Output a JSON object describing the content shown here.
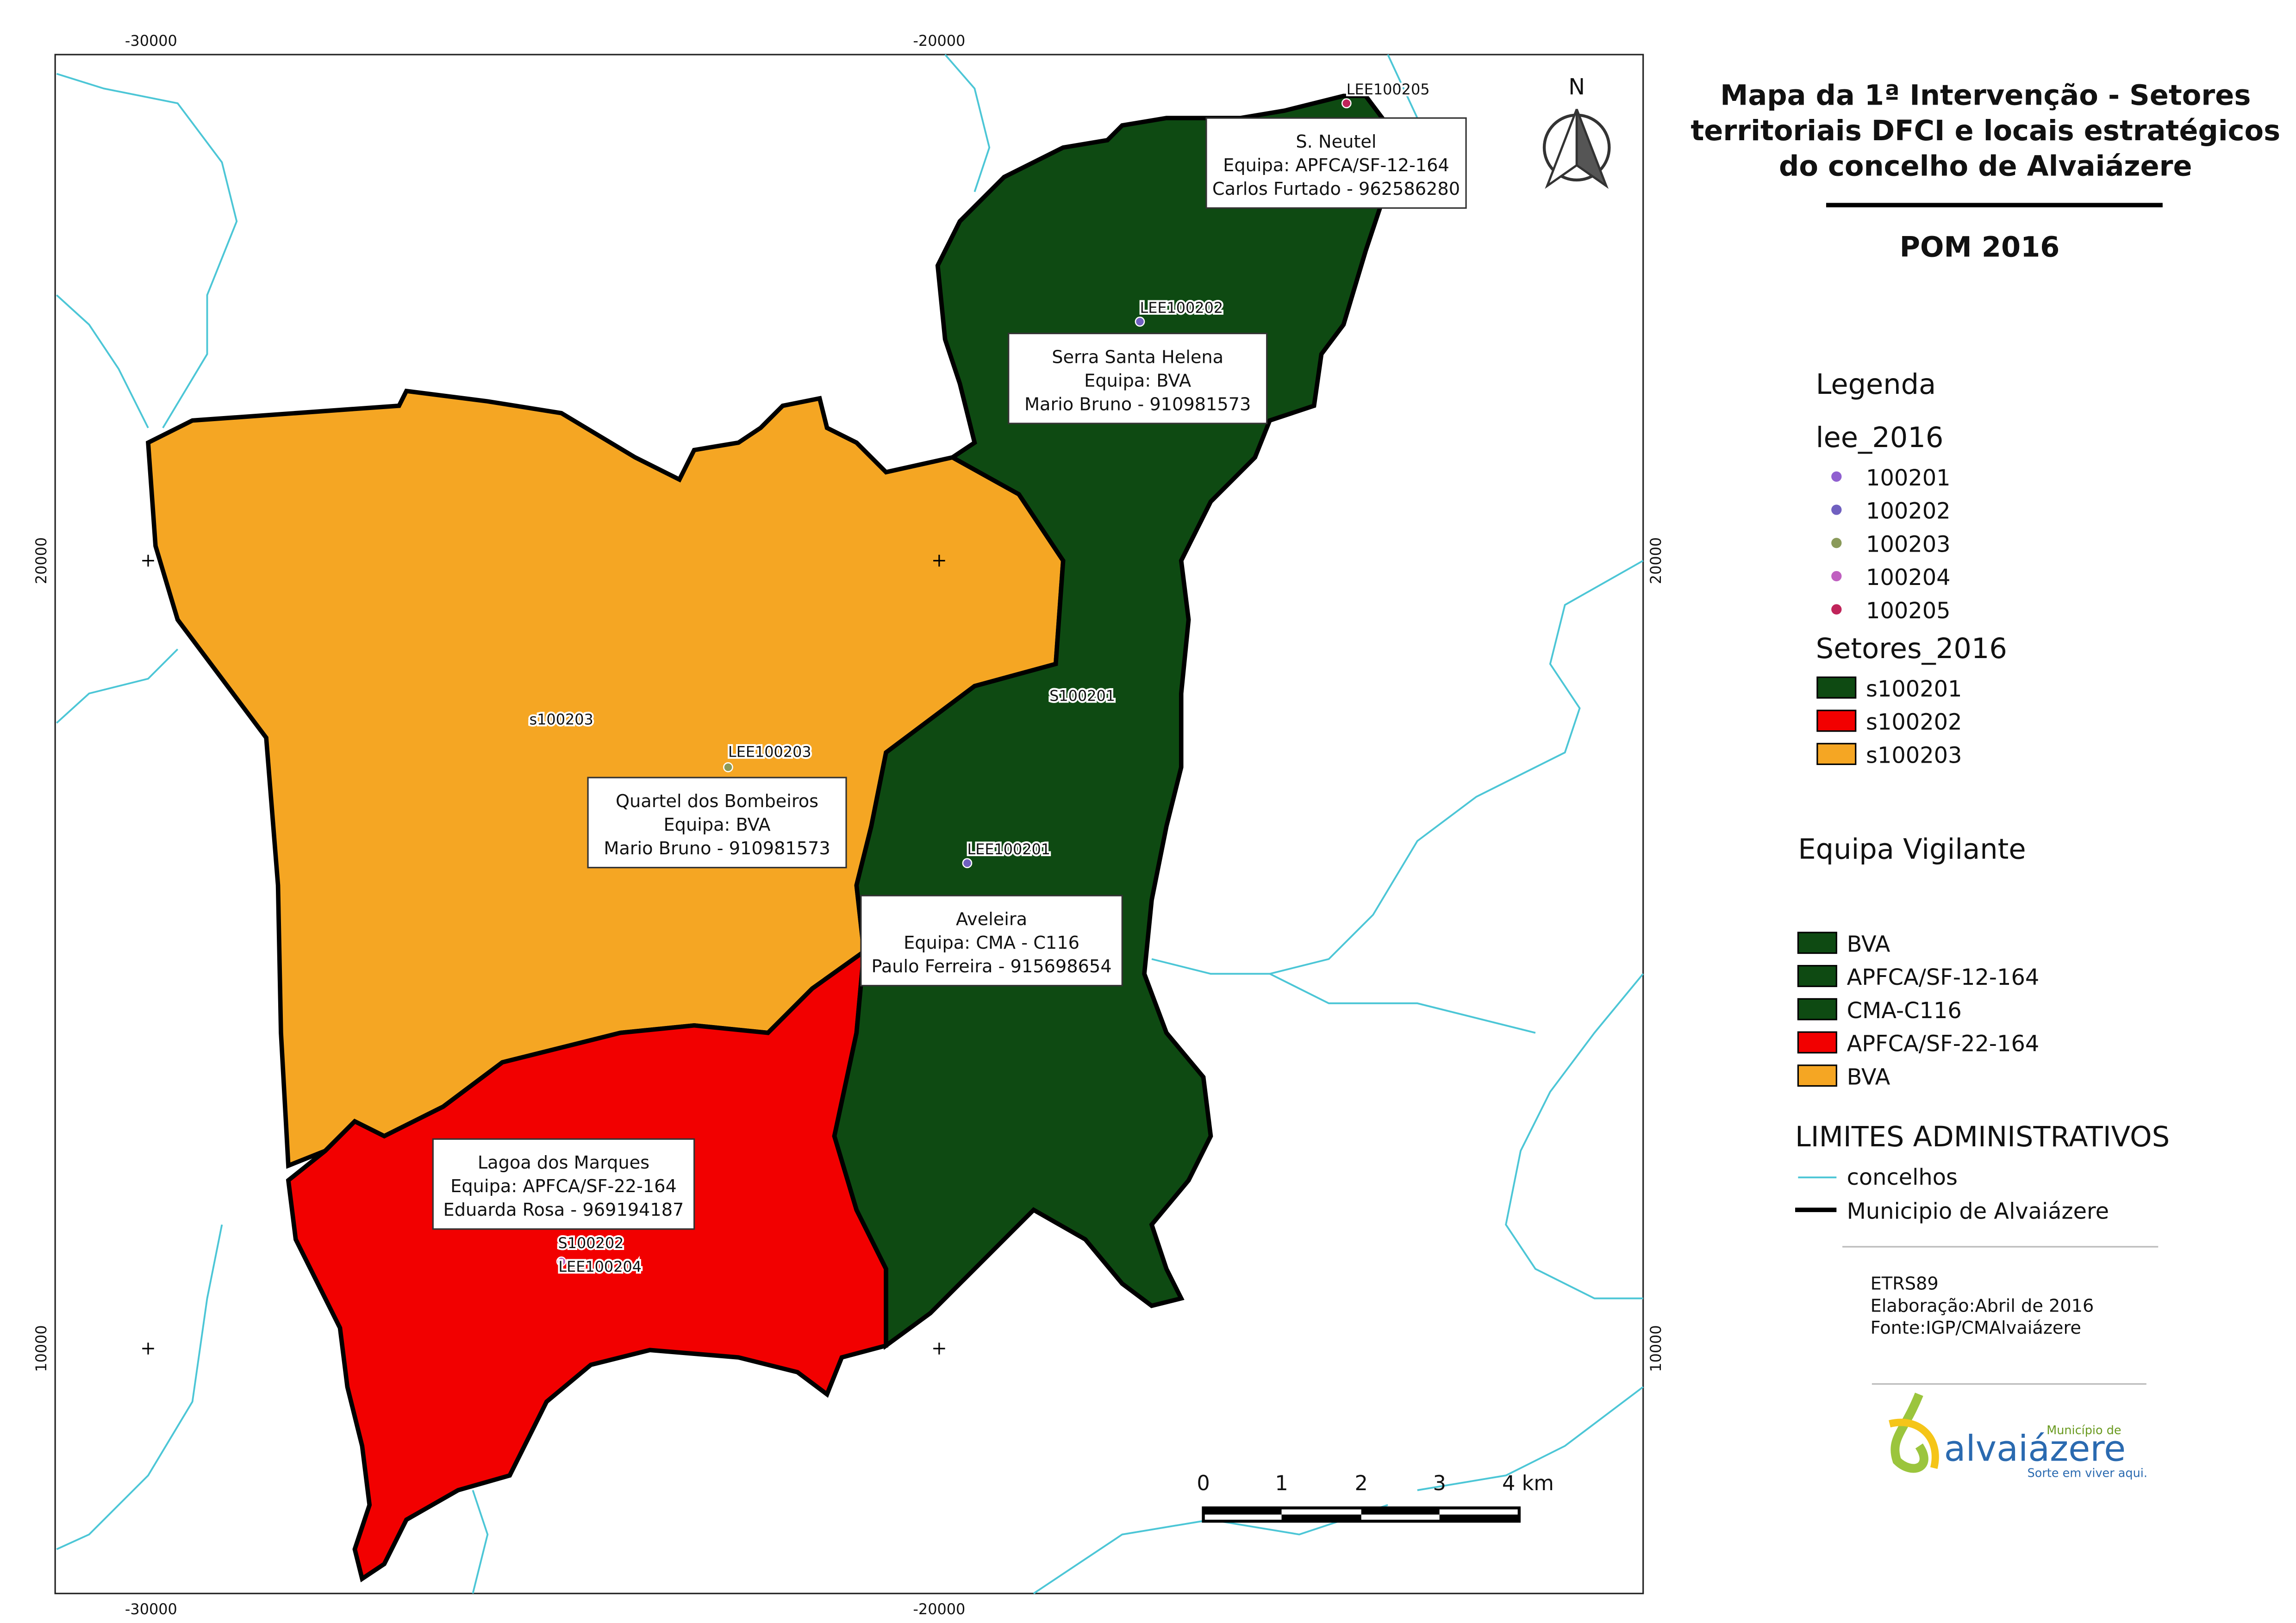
{
  "header": {
    "title_lines": [
      "Mapa da 1ª Intervenção - Setores",
      "territoriais DFCI e locais estratégicos",
      "do concelho de Alvaiázere"
    ],
    "subtitle": "POM 2016"
  },
  "grid_labels": {
    "x": [
      "-30000",
      "-20000"
    ],
    "y": [
      "20000",
      "10000"
    ]
  },
  "map": {
    "north": "N",
    "points": [
      "LEE100205",
      "LEE100202",
      "LEE100203",
      "LEE100201",
      "LEE100204"
    ],
    "sectors": [
      "s100203",
      "S100201",
      "S100202"
    ],
    "teams": [
      [
        "S. Neutel",
        "Equipa: APFCA/SF-12-164",
        "Carlos Furtado - 962586280"
      ],
      [
        "Serra Santa Helena",
        "Equipa: BVA",
        "Mario Bruno - 910981573"
      ],
      [
        "Quartel dos Bombeiros",
        "Equipa: BVA",
        "Mario Bruno - 910981573"
      ],
      [
        "Aveleira",
        "Equipa: CMA - C116",
        "Paulo Ferreira - 915698654"
      ],
      [
        "Lagoa dos Marques",
        "Equipa: APFCA/SF-22-164",
        "Eduarda Rosa - 969194187"
      ]
    ],
    "scale": [
      "0",
      "1",
      "2",
      "3",
      "4 km"
    ]
  },
  "legend": {
    "title": "Legenda",
    "lee_title": "lee_2016",
    "lee_items": [
      "100201",
      "100202",
      "100203",
      "100204",
      "100205"
    ],
    "sector_title": "Setores_2016",
    "sector_items": [
      "s100201",
      "s100202",
      "s100203"
    ],
    "team_title": "Equipa Vigilante",
    "team_items": [
      "BVA",
      "APFCA/SF-12-164",
      "CMA-C116",
      "APFCA/SF-22-164",
      "BVA"
    ],
    "admin_title": "LIMITES ADMINISTRATIVOS",
    "admin_items": [
      "concelhos",
      "Municipio de Alvaiázere"
    ]
  },
  "notes": [
    "ETRS89",
    "Elaboração:Abril de 2016",
    "Fonte:IGP/CMAlvaiázere"
  ],
  "logo": {
    "small": "Município de",
    "name": "alvaiázere",
    "slogan": "Sorte em viver aqui."
  }
}
